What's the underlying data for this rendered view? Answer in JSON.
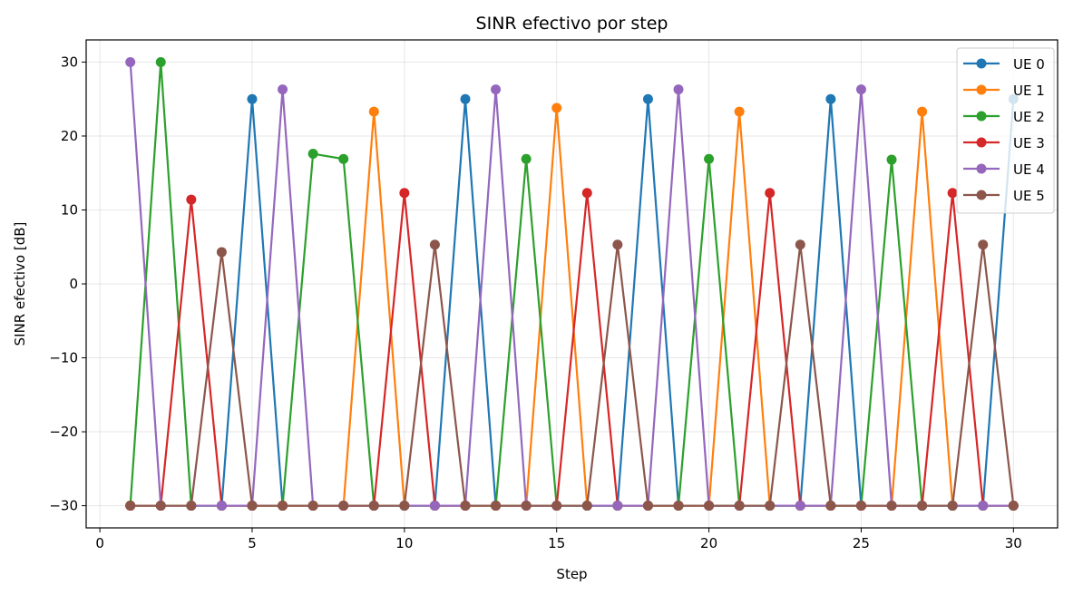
{
  "chart_data": {
    "type": "line",
    "title": "SINR efectivo por step",
    "xlabel": "Step",
    "ylabel": "SINR efectivo [dB]",
    "xlim": [
      -0.45,
      31.45
    ],
    "ylim": [
      -33,
      33
    ],
    "xticks": [
      0,
      5,
      10,
      15,
      20,
      25,
      30
    ],
    "yticks": [
      -30,
      -20,
      -10,
      0,
      10,
      20,
      30
    ],
    "ytick_labels": [
      "−30",
      "−20",
      "−10",
      "0",
      "10",
      "20",
      "30"
    ],
    "grid": true,
    "legend_position": "top-right",
    "x": [
      1,
      2,
      3,
      4,
      5,
      6,
      7,
      8,
      9,
      10,
      11,
      12,
      13,
      14,
      15,
      16,
      17,
      18,
      19,
      20,
      21,
      22,
      23,
      24,
      25,
      26,
      27,
      28,
      29,
      30
    ],
    "series": [
      {
        "name": "UE 0",
        "color": "#1f77b4",
        "values": [
          -30,
          -30,
          -30,
          -30,
          25,
          -30,
          -30,
          -30,
          -30,
          -30,
          -30,
          25,
          -30,
          -30,
          -30,
          -30,
          -30,
          25,
          -30,
          -30,
          -30,
          -30,
          -30,
          25,
          -30,
          -30,
          -30,
          -30,
          -30,
          25
        ]
      },
      {
        "name": "UE 1",
        "color": "#ff7f0e",
        "values": [
          -30,
          -30,
          -30,
          -30,
          -30,
          -30,
          -30,
          -30,
          23.3,
          -30,
          -30,
          -30,
          -30,
          -30,
          23.8,
          -30,
          -30,
          -30,
          -30,
          -30,
          23.3,
          -30,
          -30,
          -30,
          -30,
          -30,
          23.3,
          -30,
          -30,
          -30
        ]
      },
      {
        "name": "UE 2",
        "color": "#2ca02c",
        "values": [
          -30,
          30,
          -30,
          -30,
          -30,
          -30,
          17.6,
          16.9,
          -30,
          -30,
          -30,
          -30,
          -30,
          16.9,
          -30,
          -30,
          -30,
          -30,
          -30,
          16.9,
          -30,
          -30,
          -30,
          -30,
          -30,
          16.8,
          -30,
          -30,
          -30,
          -30
        ]
      },
      {
        "name": "UE 3",
        "color": "#d62728",
        "values": [
          -30,
          -30,
          11.4,
          -30,
          -30,
          -30,
          -30,
          -30,
          -30,
          12.3,
          -30,
          -30,
          -30,
          -30,
          -30,
          12.3,
          -30,
          -30,
          -30,
          -30,
          -30,
          12.3,
          -30,
          -30,
          -30,
          -30,
          -30,
          12.3,
          -30,
          -30
        ]
      },
      {
        "name": "UE 4",
        "color": "#9467bd",
        "values": [
          30,
          -30,
          -30,
          -30,
          -30,
          26.3,
          -30,
          -30,
          -30,
          -30,
          -30,
          -30,
          26.3,
          -30,
          -30,
          -30,
          -30,
          -30,
          26.3,
          -30,
          -30,
          -30,
          -30,
          -30,
          26.3,
          -30,
          -30,
          -30,
          -30,
          -30
        ]
      },
      {
        "name": "UE 5",
        "color": "#8c564b",
        "values": [
          -30,
          -30,
          -30,
          4.3,
          -30,
          -30,
          -30,
          -30,
          -30,
          -30,
          5.3,
          -30,
          -30,
          -30,
          -30,
          -30,
          5.3,
          -30,
          -30,
          -30,
          -30,
          -30,
          5.3,
          -30,
          -30,
          -30,
          -30,
          -30,
          5.3,
          -30
        ]
      }
    ]
  }
}
